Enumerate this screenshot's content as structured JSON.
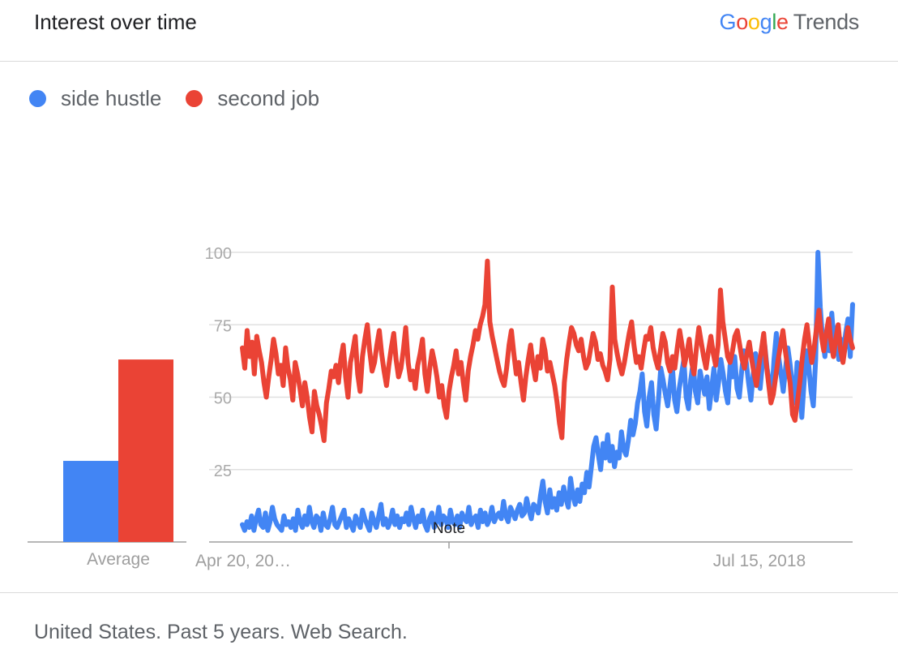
{
  "header": {
    "title": "Interest over time",
    "brand_google_letters": [
      "G",
      "o",
      "o",
      "g",
      "l",
      "e"
    ],
    "brand_google_colors": [
      "#4285f4",
      "#ea4335",
      "#fbbc05",
      "#4285f4",
      "#34a853",
      "#ea4335"
    ],
    "brand_trends": "Trends"
  },
  "footer": {
    "text": "United States. Past 5 years. Web Search."
  },
  "chart_data": {
    "type": "line",
    "title": "Interest over time",
    "x_tick_labels": [
      "Apr 20, 20…",
      "Jul 15, 2018"
    ],
    "y_ticks": [
      25,
      50,
      75,
      100
    ],
    "ylim": [
      0,
      100
    ],
    "grid": true,
    "legend_placement": "top-left",
    "annotation": "Note",
    "average": {
      "label": "Average",
      "values": [
        {
          "series": "side hustle",
          "value": 28
        },
        {
          "series": "second job",
          "value": 63
        }
      ]
    },
    "series": [
      {
        "name": "side hustle",
        "color": "#4285f4",
        "values": [
          6,
          4,
          7,
          5,
          9,
          4,
          8,
          11,
          6,
          5,
          10,
          4,
          7,
          12,
          8,
          6,
          5,
          4,
          9,
          6,
          7,
          5,
          8,
          4,
          11,
          7,
          5,
          9,
          6,
          12,
          7,
          5,
          9,
          8,
          4,
          10,
          6,
          5,
          8,
          12,
          6,
          5,
          7,
          9,
          11,
          5,
          8,
          6,
          4,
          9,
          7,
          5,
          11,
          8,
          6,
          4,
          10,
          7,
          5,
          9,
          13,
          6,
          8,
          5,
          7,
          11,
          6,
          9,
          5,
          8,
          7,
          10,
          6,
          12,
          8,
          5,
          9,
          7,
          11,
          6,
          4,
          8,
          10,
          5,
          7,
          12,
          6,
          9,
          8,
          5,
          11,
          7,
          6,
          9,
          5,
          10,
          8,
          7,
          12,
          6,
          8,
          9,
          5,
          11,
          7,
          10,
          6,
          8,
          12,
          7,
          9,
          10,
          8,
          14,
          9,
          7,
          12,
          10,
          8,
          11,
          13,
          9,
          10,
          15,
          11,
          8,
          13,
          12,
          10,
          16,
          21,
          14,
          10,
          18,
          12,
          15,
          11,
          17,
          13,
          19,
          15,
          12,
          22,
          16,
          13,
          18,
          14,
          20,
          17,
          24,
          19,
          26,
          33,
          36,
          30,
          25,
          34,
          29,
          37,
          28,
          33,
          26,
          31,
          29,
          38,
          32,
          30,
          35,
          42,
          37,
          41,
          48,
          52,
          58,
          45,
          40,
          50,
          55,
          44,
          39,
          49,
          60,
          56,
          51,
          47,
          54,
          61,
          49,
          45,
          53,
          58,
          63,
          50,
          46,
          56,
          62,
          52,
          48,
          59,
          55,
          51,
          57,
          46,
          53,
          60,
          49,
          55,
          63,
          58,
          52,
          48,
          61,
          57,
          64,
          53,
          50,
          59,
          66,
          62,
          55,
          49,
          58,
          65,
          57,
          53,
          62,
          68,
          60,
          55,
          50,
          63,
          72,
          64,
          58,
          52,
          60,
          67,
          61,
          54,
          48,
          62,
          57,
          43,
          55,
          66,
          61,
          52,
          47,
          63,
          100,
          81,
          70,
          64,
          73,
          66,
          79,
          68,
          74,
          63,
          70,
          65,
          72,
          77,
          64,
          82
        ]
      },
      {
        "name": "second job",
        "color": "#ea4335",
        "values": [
          67,
          60,
          73,
          64,
          69,
          58,
          71,
          66,
          62,
          55,
          50,
          57,
          63,
          70,
          65,
          58,
          61,
          54,
          67,
          60,
          56,
          49,
          62,
          58,
          53,
          47,
          55,
          50,
          43,
          38,
          52,
          47,
          44,
          40,
          35,
          48,
          53,
          59,
          57,
          61,
          55,
          63,
          68,
          57,
          50,
          62,
          66,
          71,
          58,
          52,
          64,
          70,
          75,
          66,
          59,
          62,
          68,
          73,
          65,
          59,
          54,
          61,
          67,
          72,
          63,
          57,
          60,
          66,
          74,
          62,
          56,
          59,
          53,
          61,
          65,
          70,
          58,
          52,
          60,
          66,
          62,
          57,
          50,
          54,
          47,
          43,
          52,
          57,
          61,
          66,
          58,
          62,
          55,
          49,
          59,
          64,
          68,
          73,
          70,
          75,
          78,
          82,
          97,
          76,
          71,
          67,
          63,
          59,
          56,
          54,
          60,
          68,
          73,
          65,
          58,
          62,
          55,
          49,
          57,
          63,
          68,
          61,
          56,
          64,
          60,
          70,
          66,
          59,
          62,
          58,
          54,
          48,
          41,
          36,
          55,
          63,
          69,
          74,
          72,
          68,
          66,
          70,
          64,
          60,
          62,
          67,
          72,
          69,
          63,
          65,
          61,
          59,
          56,
          63,
          88,
          70,
          65,
          61,
          58,
          62,
          67,
          72,
          76,
          68,
          62,
          64,
          60,
          66,
          71,
          70,
          74,
          67,
          63,
          60,
          66,
          72,
          69,
          62,
          59,
          64,
          60,
          67,
          73,
          68,
          61,
          65,
          70,
          62,
          58,
          67,
          74,
          69,
          64,
          60,
          66,
          71,
          65,
          61,
          68,
          87,
          76,
          70,
          64,
          62,
          66,
          71,
          73,
          68,
          63,
          60,
          65,
          69,
          63,
          58,
          54,
          61,
          66,
          72,
          62,
          55,
          48,
          51,
          57,
          63,
          68,
          73,
          66,
          60,
          55,
          44,
          42,
          48,
          55,
          63,
          70,
          75,
          68,
          62,
          67,
          74,
          80,
          71,
          66,
          72,
          77,
          69,
          64,
          70,
          75,
          66,
          62,
          68,
          74,
          70,
          67
        ]
      }
    ]
  }
}
